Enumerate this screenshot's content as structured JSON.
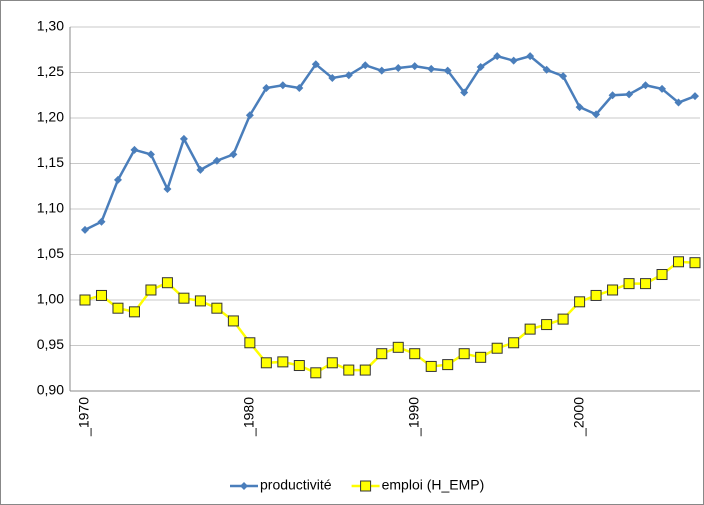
{
  "chart_data": {
    "type": "line",
    "categories": [
      "_1970",
      null,
      null,
      null,
      null,
      null,
      null,
      null,
      null,
      null,
      "_1980",
      null,
      null,
      null,
      null,
      null,
      null,
      null,
      null,
      null,
      "_1990",
      null,
      null,
      null,
      null,
      null,
      null,
      null,
      null,
      null,
      "_2000",
      null,
      null,
      null,
      null,
      null,
      null,
      null
    ],
    "series": [
      {
        "name": "productivité",
        "color": "#4a7ebb",
        "marker": "diamond",
        "values": [
          1.077,
          1.086,
          1.132,
          1.165,
          1.16,
          1.122,
          1.177,
          1.143,
          1.153,
          1.16,
          1.203,
          1.233,
          1.236,
          1.233,
          1.259,
          1.244,
          1.247,
          1.258,
          1.252,
          1.255,
          1.257,
          1.254,
          1.252,
          1.228,
          1.256,
          1.268,
          1.263,
          1.268,
          1.253,
          1.246,
          1.212,
          1.204,
          1.225,
          1.226,
          1.236,
          1.232,
          1.217,
          1.224
        ]
      },
      {
        "name": "emploi (H_EMP)",
        "color": "#ffff00",
        "marker": "square",
        "values": [
          1.0,
          1.005,
          0.991,
          0.987,
          1.011,
          1.019,
          1.002,
          0.999,
          0.991,
          0.977,
          0.953,
          0.931,
          0.932,
          0.928,
          0.92,
          0.931,
          0.923,
          0.923,
          0.941,
          0.948,
          0.941,
          0.927,
          0.929,
          0.941,
          0.937,
          0.947,
          0.953,
          0.968,
          0.973,
          0.979,
          0.998,
          1.005,
          1.011,
          1.018,
          1.018,
          1.028,
          1.042,
          1.041
        ]
      }
    ],
    "ylim": [
      0.9,
      1.3
    ],
    "yticks": [
      {
        "value": 0.9,
        "label": "0,90"
      },
      {
        "value": 0.95,
        "label": "0,95"
      },
      {
        "value": 1.0,
        "label": "1,00"
      },
      {
        "value": 1.05,
        "label": "1,05"
      },
      {
        "value": 1.1,
        "label": "1,10"
      },
      {
        "value": 1.15,
        "label": "1,15"
      },
      {
        "value": 1.2,
        "label": "1,20"
      },
      {
        "value": 1.25,
        "label": "1,25"
      },
      {
        "value": 1.3,
        "label": "1,30"
      }
    ],
    "grid": true,
    "legend": "bottom"
  }
}
